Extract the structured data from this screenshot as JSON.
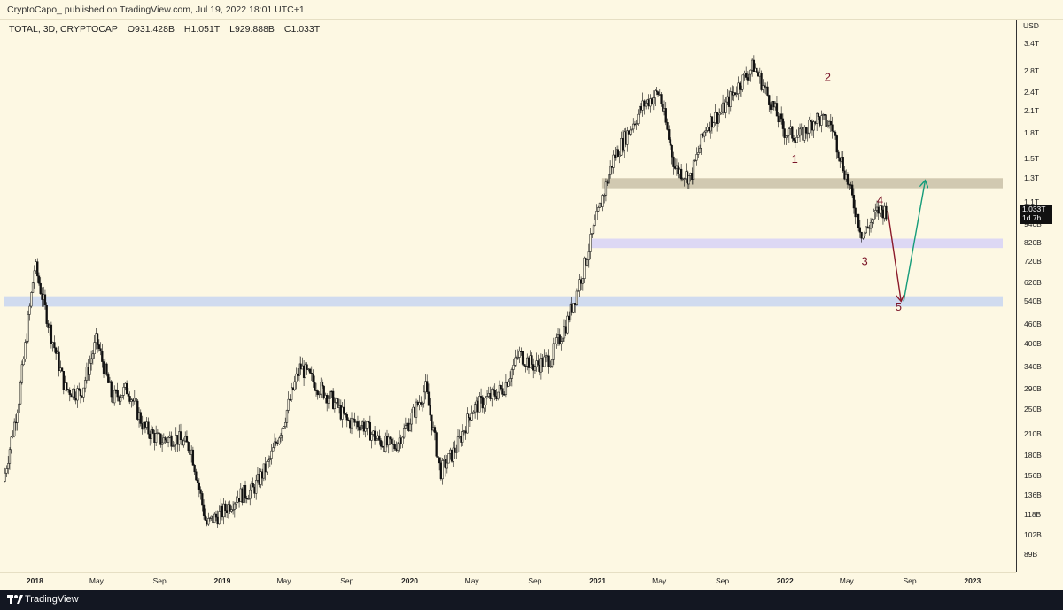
{
  "header": {
    "text": "CryptoCapo_ published on TradingView.com, Jul 19, 2022 18:01 UTC+1"
  },
  "symbol": {
    "name": "TOTAL, 3D, CRYPTOCAP",
    "open": "O931.428B",
    "high": "H1.051T",
    "low": "L929.888B",
    "close": "C1.033T"
  },
  "price_tag": {
    "value": "1.033T",
    "countdown": "1d 7h"
  },
  "yaxis_currency": "USD",
  "footer": {
    "brand": "TradingView"
  },
  "colors": {
    "background": "#fdf8e3",
    "zone_gray": "#c9c1a8",
    "zone_purple": "#ddd8f4",
    "zone_blue": "#d0dbef",
    "arrow_down": "#8b1a2a",
    "arrow_up": "#159c7a",
    "wave_label": "#7a1428"
  },
  "chart_data": {
    "type": "candlestick",
    "title": "TOTAL, 3D, CRYPTOCAP",
    "scale": "log",
    "ylim": [
      "89B",
      "3.4T"
    ],
    "y_tick_labels": [
      "3.4T",
      "2.8T",
      "2.4T",
      "2.1T",
      "1.8T",
      "1.5T",
      "1.3T",
      "1.1T",
      "940B",
      "820B",
      "720B",
      "620B",
      "540B",
      "460B",
      "400B",
      "340B",
      "290B",
      "250B",
      "210B",
      "180B",
      "156B",
      "136B",
      "118B",
      "102B",
      "89B"
    ],
    "x_tick_labels": [
      "2018",
      "May",
      "Sep",
      "2019",
      "May",
      "Sep",
      "2020",
      "May",
      "Sep",
      "2021",
      "May",
      "Sep",
      "2022",
      "May",
      "Sep",
      "2023"
    ],
    "series": [
      {
        "values": [
          {
            "x": "2017-11-01",
            "y": "150B"
          },
          {
            "x": "2017-12-01",
            "y": "270B"
          },
          {
            "x": "2018-01-01",
            "y": "700B"
          },
          {
            "x": "2018-02-01",
            "y": "430B"
          },
          {
            "x": "2018-03-01",
            "y": "290B"
          },
          {
            "x": "2018-04-01",
            "y": "280B"
          },
          {
            "x": "2018-05-01",
            "y": "410B"
          },
          {
            "x": "2018-06-01",
            "y": "270B"
          },
          {
            "x": "2018-07-01",
            "y": "290B"
          },
          {
            "x": "2018-08-01",
            "y": "220B"
          },
          {
            "x": "2018-09-01",
            "y": "200B"
          },
          {
            "x": "2018-10-01",
            "y": "205B"
          },
          {
            "x": "2018-11-01",
            "y": "190B"
          },
          {
            "x": "2018-12-01",
            "y": "110B"
          },
          {
            "x": "2019-01-01",
            "y": "120B"
          },
          {
            "x": "2019-02-01",
            "y": "135B"
          },
          {
            "x": "2019-03-01",
            "y": "140B"
          },
          {
            "x": "2019-04-01",
            "y": "170B"
          },
          {
            "x": "2019-05-01",
            "y": "230B"
          },
          {
            "x": "2019-06-01",
            "y": "340B"
          },
          {
            "x": "2019-07-01",
            "y": "300B"
          },
          {
            "x": "2019-08-01",
            "y": "270B"
          },
          {
            "x": "2019-09-01",
            "y": "230B"
          },
          {
            "x": "2019-10-01",
            "y": "225B"
          },
          {
            "x": "2019-11-01",
            "y": "200B"
          },
          {
            "x": "2019-12-01",
            "y": "190B"
          },
          {
            "x": "2020-01-01",
            "y": "230B"
          },
          {
            "x": "2020-02-01",
            "y": "290B"
          },
          {
            "x": "2020-03-01",
            "y": "160B"
          },
          {
            "x": "2020-04-01",
            "y": "190B"
          },
          {
            "x": "2020-05-01",
            "y": "250B"
          },
          {
            "x": "2020-06-01",
            "y": "270B"
          },
          {
            "x": "2020-07-01",
            "y": "290B"
          },
          {
            "x": "2020-08-01",
            "y": "370B"
          },
          {
            "x": "2020-09-01",
            "y": "340B"
          },
          {
            "x": "2020-10-01",
            "y": "360B"
          },
          {
            "x": "2020-11-01",
            "y": "460B"
          },
          {
            "x": "2020-12-01",
            "y": "650B"
          },
          {
            "x": "2021-01-01",
            "y": "1.0T"
          },
          {
            "x": "2021-02-01",
            "y": "1.5T"
          },
          {
            "x": "2021-03-01",
            "y": "1.8T"
          },
          {
            "x": "2021-04-01",
            "y": "2.2T"
          },
          {
            "x": "2021-05-01",
            "y": "2.4T"
          },
          {
            "x": "2021-06-01",
            "y": "1.4T"
          },
          {
            "x": "2021-07-01",
            "y": "1.3T"
          },
          {
            "x": "2021-08-01",
            "y": "1.9T"
          },
          {
            "x": "2021-09-01",
            "y": "2.1T"
          },
          {
            "x": "2021-10-01",
            "y": "2.5T"
          },
          {
            "x": "2021-11-01",
            "y": "2.9T"
          },
          {
            "x": "2021-12-01",
            "y": "2.3T"
          },
          {
            "x": "2022-01-01",
            "y": "1.8T"
          },
          {
            "x": "2022-02-01",
            "y": "1.75T"
          },
          {
            "x": "2022-03-01",
            "y": "2.0T"
          },
          {
            "x": "2022-04-01",
            "y": "1.9T"
          },
          {
            "x": "2022-05-01",
            "y": "1.3T"
          },
          {
            "x": "2022-06-01",
            "y": "860B"
          },
          {
            "x": "2022-07-01",
            "y": "1.033T"
          }
        ]
      }
    ],
    "zones": [
      {
        "from": "1.21T",
        "to": "1.3T",
        "start": "2021-01-10",
        "end": "2023-03-01"
      },
      {
        "from": "790B",
        "to": "845B",
        "start": "2020-12-20",
        "end": "2023-03-01"
      },
      {
        "from": "520B",
        "to": "560B",
        "start": "2017-11-01",
        "end": "2023-03-01"
      }
    ],
    "annotations": [
      {
        "text": "1",
        "x": "2022-01-20",
        "y": "1.45T"
      },
      {
        "text": "2",
        "x": "2022-03-25",
        "y": "2.6T"
      },
      {
        "text": "3",
        "x": "2022-06-05",
        "y": "700B"
      },
      {
        "text": "4",
        "x": "2022-07-05",
        "y": "1.08T"
      },
      {
        "text": "5",
        "x": "2022-08-10",
        "y": "505B"
      }
    ],
    "projections": [
      {
        "direction": "down",
        "from": {
          "x": "2022-07-20",
          "y": "1.03T"
        },
        "to": {
          "x": "2022-08-15",
          "y": "540B"
        }
      },
      {
        "direction": "up",
        "from": {
          "x": "2022-08-20",
          "y": "540B"
        },
        "to": {
          "x": "2022-10-01",
          "y": "1.28T"
        }
      }
    ]
  }
}
